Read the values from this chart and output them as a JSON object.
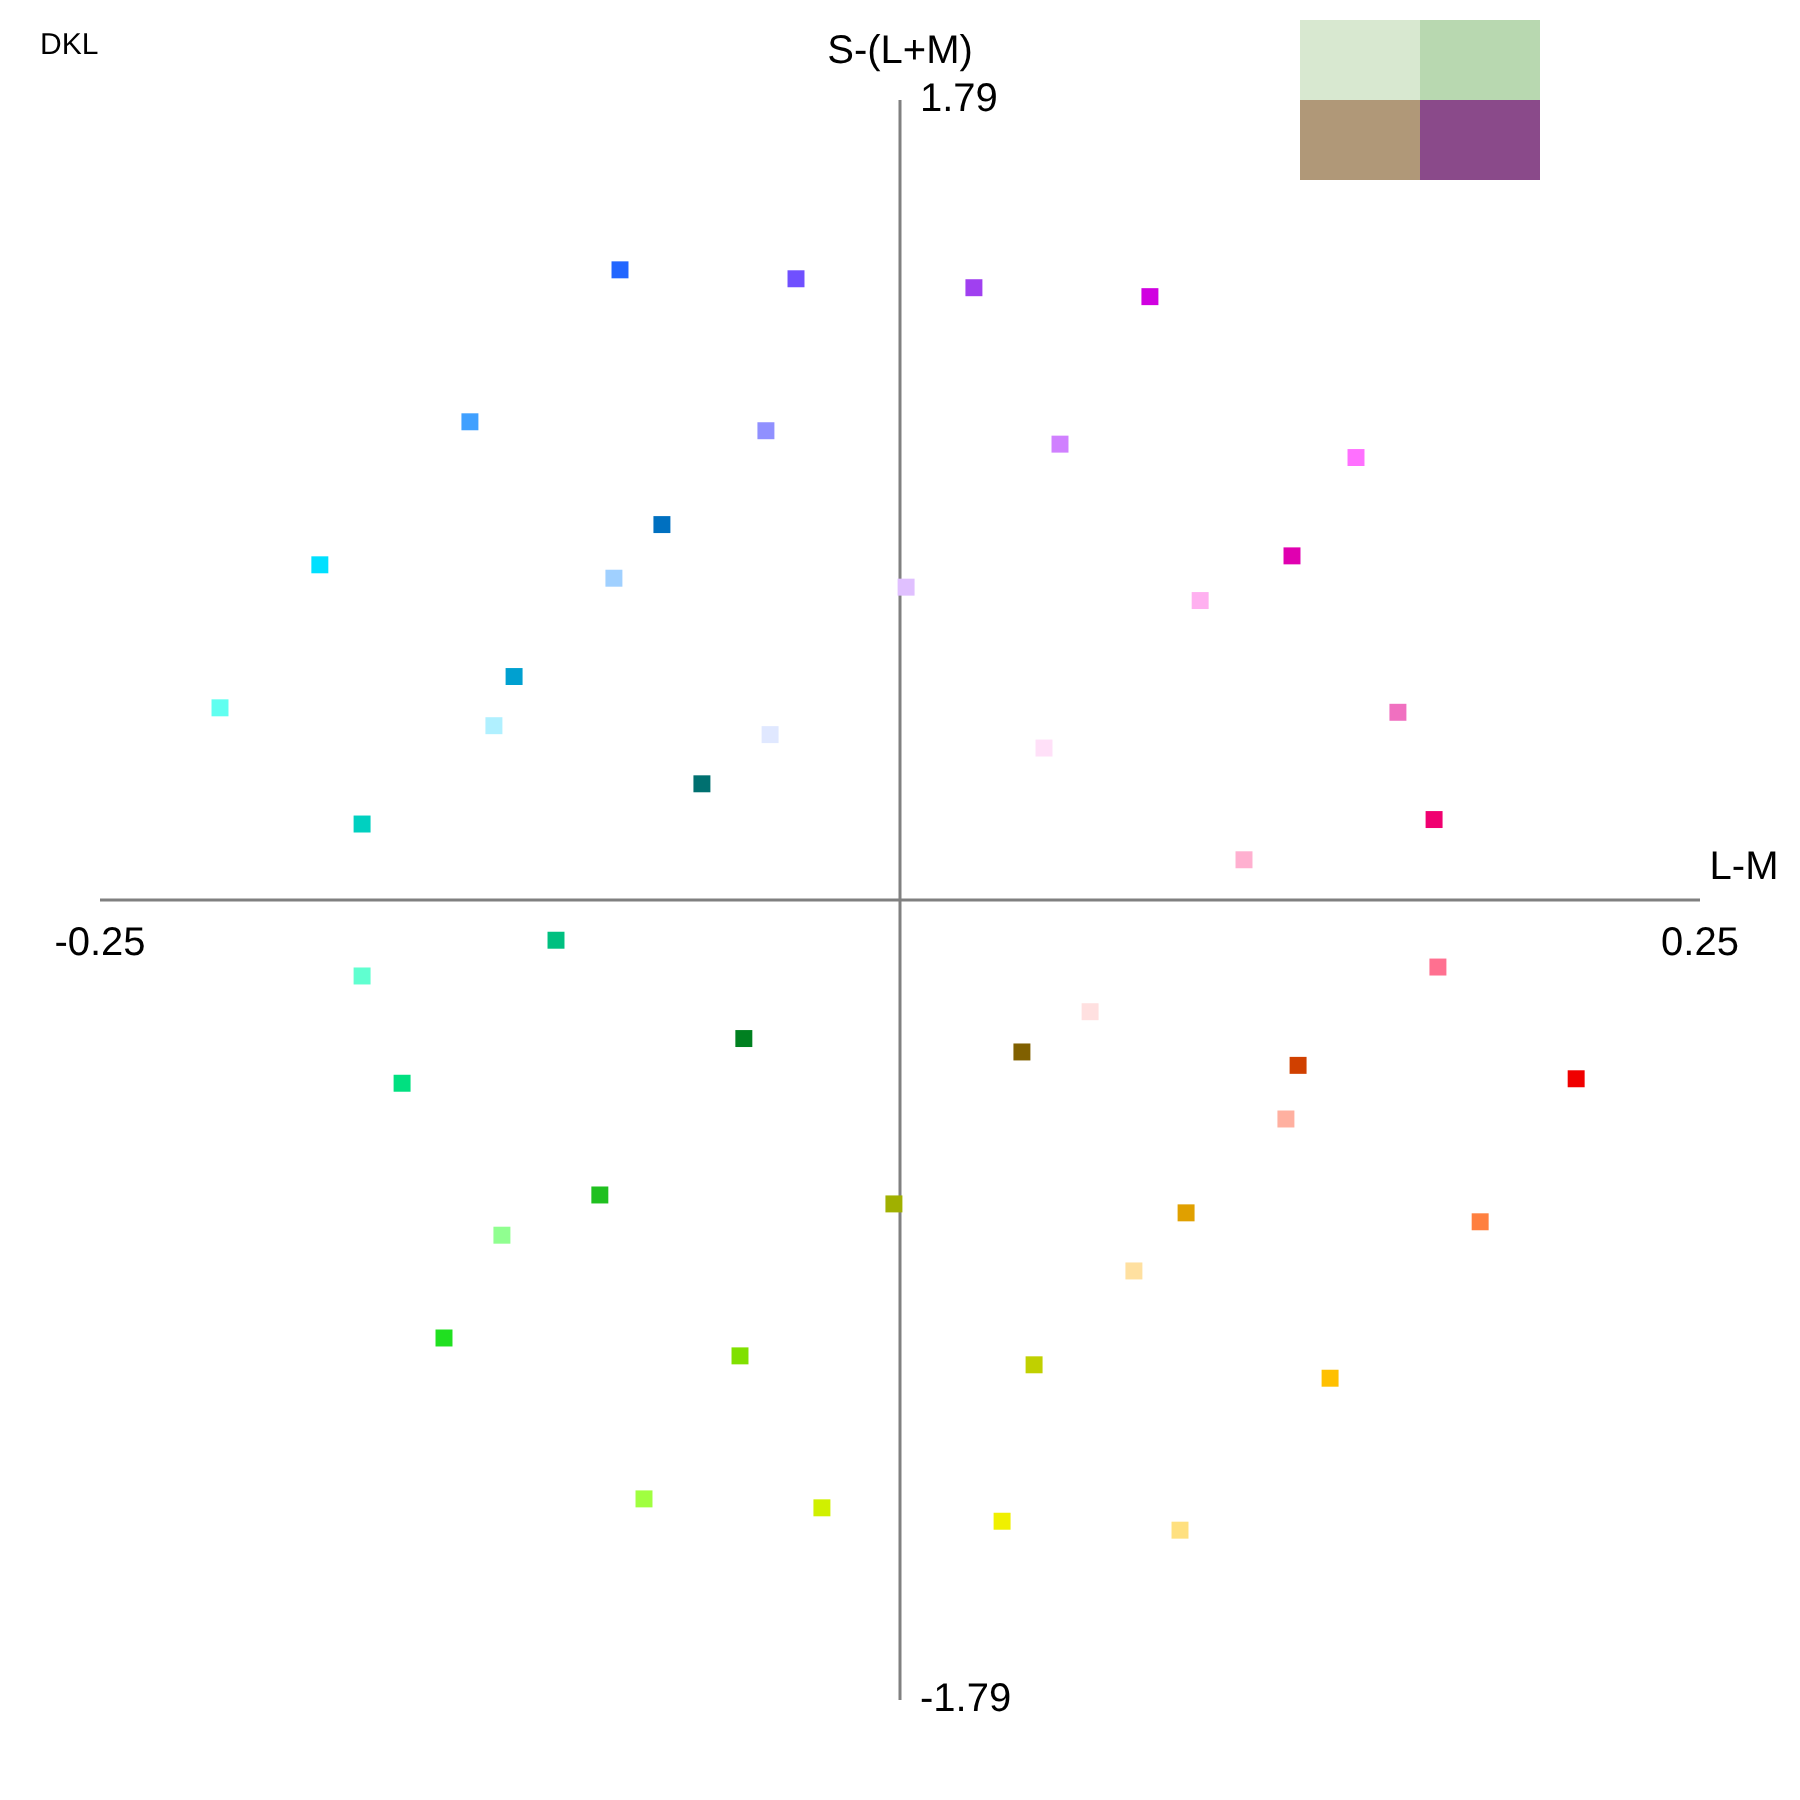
{
  "chart_data": {
    "type": "scatter",
    "title": "DKL",
    "xlabel": "L-M",
    "ylabel": "S-(L+M)",
    "xlim": [
      -0.25,
      0.25
    ],
    "ylim": [
      -1.79,
      1.79
    ],
    "xticks": [
      -0.25,
      0.25
    ],
    "yticks": [
      -1.79,
      1.79
    ],
    "marker": "square",
    "series": [
      {
        "x": [
          -0.0875,
          -0.0325,
          0.0231,
          0.0781,
          0.1225,
          0.1669,
          0.2113,
          0.1244,
          0.0381,
          -0.0488,
          -0.0619,
          -0.0744
        ],
        "values": [
          1.41,
          1.39,
          1.37,
          1.35,
          0.77,
          0.18,
          -0.4,
          -0.37,
          -0.34,
          -0.31,
          0.26,
          0.84
        ],
        "colors": [
          "#2266ff",
          "#7050ff",
          "#a040f0",
          "#d000e0",
          "#e000b0",
          "#f00070",
          "#f00000",
          "#d04000",
          "#806000",
          "#008020",
          "#007070",
          "#0070c0"
        ]
      },
      {
        "x": [
          -0.1344,
          -0.0419,
          0.05,
          0.1425,
          0.1556,
          0.1681,
          0.1813,
          0.0894,
          -0.0019,
          -0.0938,
          -0.1075,
          -0.1206
        ],
        "values": [
          1.07,
          1.05,
          1.02,
          0.99,
          0.42,
          -0.15,
          -0.72,
          -0.7,
          -0.68,
          -0.66,
          -0.09,
          0.5
        ],
        "colors": [
          "#40a0ff",
          "#9090ff",
          "#d080ff",
          "#ff70ff",
          "#f070c0",
          "#ff7090",
          "#ff8040",
          "#e0a000",
          "#a0b000",
          "#20c020",
          "#00c080",
          "#00a0d0"
        ]
      },
      {
        "x": [
          -0.1813,
          -0.0894,
          0.0019,
          0.0938,
          0.1075,
          0.1206,
          0.1344,
          0.0419,
          -0.05,
          -0.1425,
          -0.1556,
          -0.1681
        ],
        "values": [
          0.75,
          0.72,
          0.7,
          0.67,
          0.09,
          -0.49,
          -1.07,
          -1.04,
          -1.02,
          -0.98,
          -0.41,
          0.17
        ],
        "colors": [
          "#00e0ff",
          "#a0d0ff",
          "#e0c0ff",
          "#ffb0f0",
          "#ffb0d0",
          "#ffb0a0",
          "#ffc000",
          "#c0d000",
          "#80e000",
          "#20e020",
          "#00e080",
          "#00d0c0"
        ]
      },
      {
        "x": [
          -0.2125,
          -0.1269,
          -0.0406,
          0.045,
          0.0594,
          0.0731,
          0.0875,
          0.0319,
          -0.0244,
          -0.08,
          -0.1244,
          -0.1681
        ],
        "values": [
          0.43,
          0.39,
          0.37,
          0.34,
          -0.25,
          -0.83,
          -1.41,
          -1.39,
          -1.36,
          -1.34,
          -0.75,
          -0.17
        ],
        "colors": [
          "#60fff0",
          "#b0f0ff",
          "#e0e8ff",
          "#ffe0f8",
          "#ffe0e0",
          "#ffe0a0",
          "#ffe080",
          "#f0f000",
          "#d0f000",
          "#a0ff40",
          "#90ff90",
          "#60ffd0"
        ]
      }
    ]
  }
}
